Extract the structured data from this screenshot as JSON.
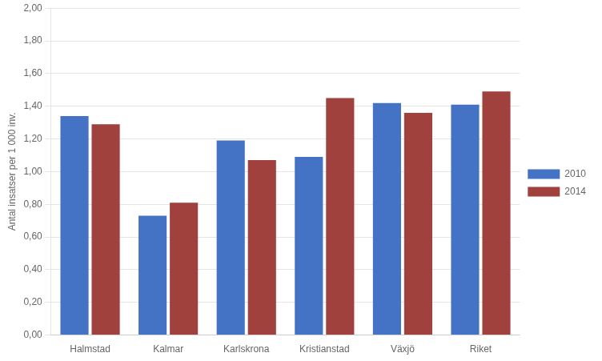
{
  "chart_data": {
    "type": "bar",
    "categories": [
      "Halmstad",
      "Kalmar",
      "Karlskrona",
      "Kristianstad",
      "Växjö",
      "Riket"
    ],
    "series": [
      {
        "name": "2010",
        "color": "#4472C4",
        "values": [
          1.34,
          0.73,
          1.19,
          1.09,
          1.42,
          1.41
        ]
      },
      {
        "name": "2014",
        "color": "#A0413E",
        "values": [
          1.29,
          0.81,
          1.07,
          1.45,
          1.36,
          1.49
        ]
      }
    ],
    "ylabel": "Antal insatser per 1 000 inv.",
    "ylim": [
      0,
      2.0
    ],
    "yticks": [
      {
        "value": 0.0,
        "label": "0,00"
      },
      {
        "value": 0.2,
        "label": "0,20"
      },
      {
        "value": 0.4,
        "label": "0,40"
      },
      {
        "value": 0.6,
        "label": "0,60"
      },
      {
        "value": 0.8,
        "label": "0,80"
      },
      {
        "value": 1.0,
        "label": "1,00"
      },
      {
        "value": 1.2,
        "label": "1,20"
      },
      {
        "value": 1.4,
        "label": "1,40"
      },
      {
        "value": 1.6,
        "label": "1,60"
      },
      {
        "value": 1.8,
        "label": "1,80"
      },
      {
        "value": 2.0,
        "label": "2,00"
      }
    ],
    "grid": true,
    "legend": "right"
  }
}
